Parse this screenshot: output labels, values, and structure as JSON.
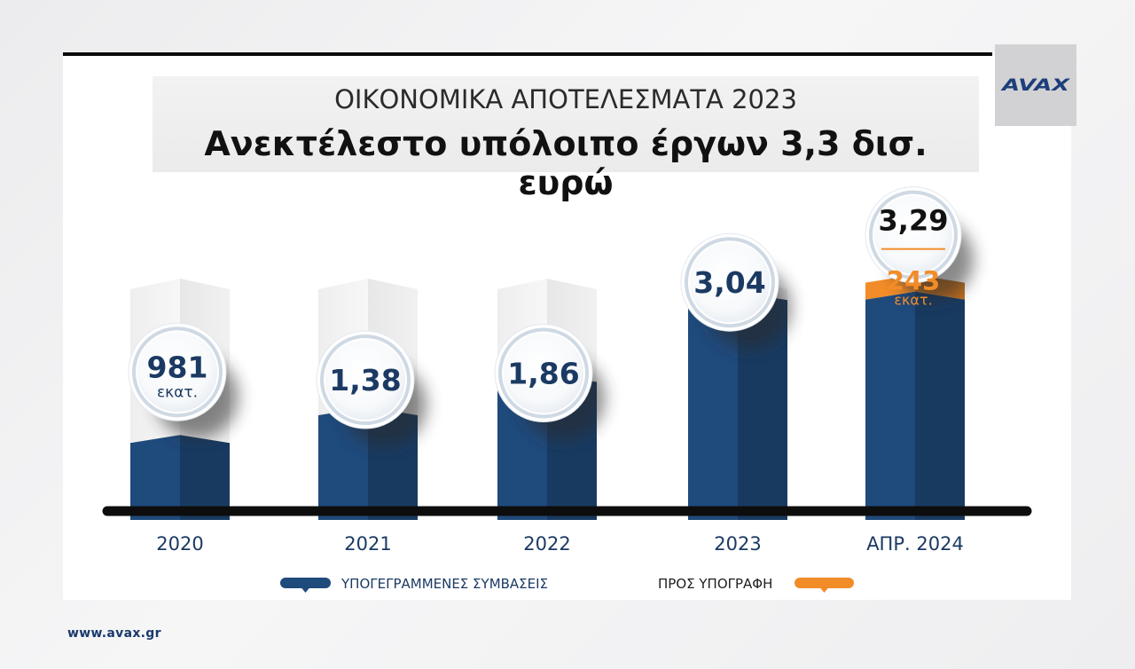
{
  "header": {
    "title": "ΟΙΚΟΝΟΜΙΚΑ ΑΠΟΤΕΛΕΣΜΑΤΑ 2023",
    "subtitle": "Ανεκτέλεστο υπόλοιπο έργων 3,3 δισ. ευρώ"
  },
  "logo": {
    "text": "AVAX"
  },
  "footer": {
    "website": "www.avax.gr"
  },
  "colors": {
    "signed": "#1f4a7c",
    "to_sign": "#f28c28",
    "signed_label": "#1b3a63",
    "to_sign_label": "#f28c28",
    "total_label": "#111111"
  },
  "chart_data": {
    "type": "bar",
    "stacked": true,
    "unit": "δισ. ευρώ",
    "categories": [
      "2020",
      "2021",
      "2022",
      "2023",
      "ΑΠΡ. 2024"
    ],
    "series": [
      {
        "name": "ΥΠΟΓΕΓΡΑΜΜΕΝΕΣ ΣΥΜΒΑΣΕΙΣ",
        "values": [
          0.981,
          1.38,
          1.86,
          3.04,
          3.047
        ]
      },
      {
        "name": "ΠΡΟΣ ΥΠΟΓΡΑΦΗ",
        "values": [
          0,
          0,
          0,
          0,
          0.243
        ]
      }
    ],
    "data_labels": [
      {
        "value": "981",
        "unit": "εκατ."
      },
      {
        "value": "1,38",
        "unit": ""
      },
      {
        "value": "1,86",
        "unit": ""
      },
      {
        "value": "3,04",
        "unit": ""
      },
      {
        "value": "3,29",
        "unit": "",
        "sub_value": "243",
        "sub_unit": "εκατ."
      }
    ],
    "legend": [
      "ΥΠΟΓΕΓΡΑΜΜΕΝΕΣ ΣΥΜΒΑΣΕΙΣ",
      "ΠΡΟΣ ΥΠΟΓΡΑΦΗ"
    ],
    "legend_position": "bottom",
    "grid": false
  }
}
